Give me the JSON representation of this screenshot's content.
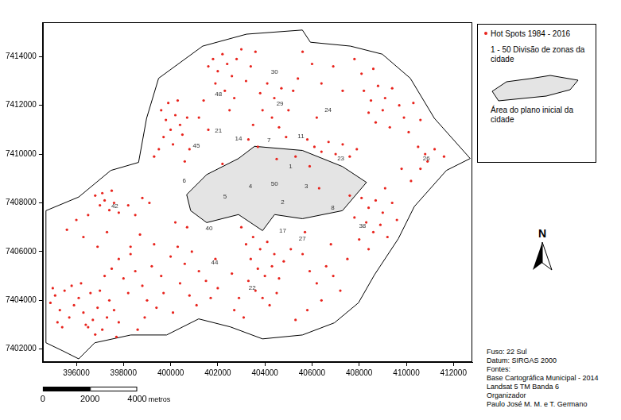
{
  "chart_data": {
    "type": "scatter",
    "series": [
      {
        "name": "Hot Spots 1984 - 2016",
        "color": "#e8231c",
        "marker": "circle",
        "x": [
          394900,
          395100,
          395300,
          395500,
          395700,
          395900,
          396100,
          396300,
          396500,
          396700,
          396900,
          397100,
          397300,
          395200,
          395400,
          395800,
          396200,
          396600,
          397000,
          397400,
          397600,
          397800,
          396400,
          396800,
          395000,
          397200,
          397500,
          397800,
          398000,
          398200,
          396800,
          397000,
          397200,
          397400,
          397600,
          397800,
          397100,
          397500,
          396500,
          396000,
          395600,
          396300,
          396900,
          397300,
          398200,
          398500,
          398800,
          399100,
          398300,
          398700,
          398500,
          398800,
          399200,
          399000,
          398900,
          398600,
          397700,
          399400,
          399700,
          398300,
          399300,
          399600,
          400000,
          400300,
          400600,
          400900,
          401200,
          401500,
          400400,
          400800,
          401100,
          400100,
          401700,
          402000,
          401900,
          400200,
          400700,
          399600,
          399800,
          400000,
          400200,
          400400,
          399700,
          400100,
          400500,
          399900,
          400300,
          400700,
          399500,
          400800,
          399300,
          400600,
          401600,
          401800,
          402000,
          402200,
          402400,
          402600,
          402800,
          403000,
          401900,
          402300,
          402700,
          403200,
          403400,
          403600,
          401400,
          401200,
          401600,
          402500,
          403800,
          404100,
          404400,
          404700,
          403900,
          404300,
          404600,
          403500,
          403300,
          403700,
          405000,
          405200,
          405600,
          406000,
          405400,
          406400,
          406900,
          407300,
          406200,
          407800,
          408200,
          408500,
          408800,
          409100,
          409400,
          409700,
          408400,
          408700,
          409000,
          409300,
          409900,
          408100,
          408600,
          410300,
          410600,
          410100,
          410500,
          410800,
          410900,
          411200,
          411600,
          410600,
          410200,
          409800,
          406100,
          406400,
          406700,
          407000,
          407300,
          407600,
          405800,
          407900,
          408100,
          408400,
          408700,
          409000,
          408300,
          408600,
          408900,
          409200,
          408000,
          408400,
          409400,
          409600,
          407800,
          407600,
          409100,
          403200,
          403500,
          403800,
          404100,
          404400,
          403400,
          403700,
          404000,
          404300,
          404600,
          403300,
          403600,
          403900,
          404200,
          404500,
          402900,
          402700,
          403100,
          404800,
          405100,
          402600,
          403000,
          405600,
          405900,
          406200,
          406600,
          406900,
          407200,
          406400,
          405800,
          405300,
          407500,
          406800,
          405700,
          404900,
          405300,
          405900,
          404500,
          402200,
          406300
        ],
        "values": [
          7403900,
          7404200,
          7403600,
          7404400,
          7403300,
          7403800,
          7404100,
          7403500,
          7402900,
          7403200,
          7403700,
          7402800,
          7403300,
          7403100,
          7402900,
          7404600,
          7404700,
          7404300,
          7404400,
          7404000,
          7403600,
          7403100,
          7403000,
          7402600,
          7404500,
          7405000,
          7405300,
          7405700,
          7404900,
          7404300,
          7408300,
          7407900,
          7408100,
          7407700,
          7408000,
          7407600,
          7408400,
          7408500,
          7407500,
          7407300,
          7406900,
          7406600,
          7406200,
          7406800,
          7407900,
          7407500,
          7408200,
          7408000,
          7406200,
          7406700,
          7405200,
          7404600,
          7405400,
          7404000,
          7403300,
          7402800,
          7402500,
          7403700,
          7404300,
          7405900,
          7406300,
          7405000,
          7405800,
          7406200,
          7405500,
          7406000,
          7405200,
          7404800,
          7404700,
          7404200,
          7403800,
          7403500,
          7404100,
          7404500,
          7405700,
          7407200,
          7407000,
          7411800,
          7411400,
          7411000,
          7411600,
          7411200,
          7410700,
          7410400,
          7410800,
          7412100,
          7412200,
          7411500,
          7410200,
          7410200,
          7409900,
          7409700,
          7413600,
          7413900,
          7413400,
          7414100,
          7413700,
          7413200,
          7413900,
          7414300,
          7412900,
          7412600,
          7412300,
          7413000,
          7413600,
          7414200,
          7412200,
          7411500,
          7411000,
          7411800,
          7412500,
          7412900,
          7412300,
          7412700,
          7411800,
          7411500,
          7411100,
          7411200,
          7410600,
          7410300,
          7411800,
          7412600,
          7414200,
          7413700,
          7413100,
          7412900,
          7413600,
          7412600,
          7411500,
          7413900,
          7412600,
          7412200,
          7412800,
          7412300,
          7412700,
          7412000,
          7411700,
          7411300,
          7411800,
          7411100,
          7411500,
          7413300,
          7413500,
          7412100,
          7411400,
          7410900,
          7410300,
          7410000,
          7409700,
          7410200,
          7409900,
          7409400,
          7408900,
          7409400,
          7410300,
          7410100,
          7410500,
          7410000,
          7410400,
          7409900,
          7410600,
          7410200,
          7408200,
          7407800,
          7408100,
          7407600,
          7407200,
          7406800,
          7407100,
          7406600,
          7406500,
          7406100,
          7408000,
          7407300,
          7407400,
          7408300,
          7408600,
          7406300,
          7406600,
          7406100,
          7406400,
          7405900,
          7405700,
          7405300,
          7405000,
          7405400,
          7404900,
          7404800,
          7404400,
          7404100,
          7403800,
          7404300,
          7404100,
          7403600,
          7403300,
          7405600,
          7406100,
          7405100,
          7407000,
          7405900,
          7405200,
          7404700,
          7405400,
          7405000,
          7404400,
          7404000,
          7403600,
          7403200,
          7405700,
          7406300,
          7406800,
          7410700,
          7409900,
          7409500,
          7409800,
          7409600,
          7408600
        ]
      }
    ],
    "xlim": [
      394580,
      412800
    ],
    "xticks": [
      396000,
      398000,
      400000,
      402000,
      404000,
      406000,
      408000,
      410000,
      412000
    ],
    "ylim": [
      7401470,
      7415410
    ],
    "yticks": [
      7402000,
      7404000,
      7406000,
      7408000,
      7410000,
      7412000,
      7414000
    ],
    "grid": false,
    "city_boundary": {
      "color": "#000000",
      "points": [
        [
          394710,
          7407680
        ],
        [
          396100,
          7408240
        ],
        [
          397460,
          7409330
        ],
        [
          398640,
          7409660
        ],
        [
          398980,
          7411470
        ],
        [
          399490,
          7413110
        ],
        [
          401360,
          7414430
        ],
        [
          403220,
          7414920
        ],
        [
          405590,
          7415090
        ],
        [
          405930,
          7414590
        ],
        [
          407630,
          7414430
        ],
        [
          408980,
          7414100
        ],
        [
          410170,
          7413110
        ],
        [
          411190,
          7411470
        ],
        [
          412710,
          7409820
        ],
        [
          411700,
          7409330
        ],
        [
          410340,
          7407850
        ],
        [
          409660,
          7406530
        ],
        [
          408650,
          7405050
        ],
        [
          407970,
          7403900
        ],
        [
          406950,
          7403080
        ],
        [
          405590,
          7402580
        ],
        [
          403900,
          7402420
        ],
        [
          402540,
          7402910
        ],
        [
          401190,
          7403240
        ],
        [
          399830,
          7402580
        ],
        [
          398310,
          7402580
        ],
        [
          396780,
          7402260
        ],
        [
          396100,
          7401600
        ],
        [
          395420,
          7401930
        ],
        [
          394710,
          7402260
        ]
      ]
    },
    "initial_plan": {
      "name": "Área do plano inicial da cidade",
      "color": "#e4e4e4",
      "points": [
        [
          400680,
          7408340
        ],
        [
          401530,
          7409160
        ],
        [
          402880,
          7409820
        ],
        [
          403560,
          7410320
        ],
        [
          405590,
          7410150
        ],
        [
          407290,
          7409490
        ],
        [
          408310,
          7408840
        ],
        [
          407290,
          7407680
        ],
        [
          405590,
          7407350
        ],
        [
          404410,
          7407520
        ],
        [
          403900,
          7406860
        ],
        [
          402880,
          7407520
        ],
        [
          401530,
          7407190
        ],
        [
          400850,
          7407680
        ]
      ]
    },
    "zones": {
      "name": "1 - 50 Divisão de zonas da cidade",
      "labels": [
        {
          "label": 30,
          "x": 404410,
          "y": 7413380
        },
        {
          "label": 48,
          "x": 402030,
          "y": 7412450
        },
        {
          "label": 29,
          "x": 404640,
          "y": 7412060
        },
        {
          "label": 24,
          "x": 406680,
          "y": 7411800
        },
        {
          "label": 21,
          "x": 402030,
          "y": 7410970
        },
        {
          "label": 14,
          "x": 402880,
          "y": 7410640
        },
        {
          "label": 7,
          "x": 404170,
          "y": 7410550
        },
        {
          "label": 11,
          "x": 405530,
          "y": 7410740
        },
        {
          "label": 23,
          "x": 407220,
          "y": 7409820
        },
        {
          "label": 26,
          "x": 410850,
          "y": 7409820
        },
        {
          "label": 45,
          "x": 401090,
          "y": 7410320
        },
        {
          "label": 6,
          "x": 400580,
          "y": 7408900
        },
        {
          "label": 4,
          "x": 403390,
          "y": 7408670
        },
        {
          "label": 50,
          "x": 404410,
          "y": 7408770
        },
        {
          "label": 1,
          "x": 405090,
          "y": 7409490
        },
        {
          "label": 3,
          "x": 405760,
          "y": 7408670
        },
        {
          "label": 5,
          "x": 402310,
          "y": 7408240
        },
        {
          "label": 2,
          "x": 404750,
          "y": 7408010
        },
        {
          "label": 42,
          "x": 397630,
          "y": 7407850
        },
        {
          "label": 40,
          "x": 401630,
          "y": 7406960
        },
        {
          "label": 17,
          "x": 404750,
          "y": 7406860
        },
        {
          "label": 27,
          "x": 405590,
          "y": 7406530
        },
        {
          "label": 8,
          "x": 406880,
          "y": 7407780
        },
        {
          "label": 38,
          "x": 408140,
          "y": 7407030
        },
        {
          "label": 44,
          "x": 401870,
          "y": 7405550
        },
        {
          "label": 22,
          "x": 403460,
          "y": 7404490
        }
      ]
    },
    "north_arrow": "N",
    "scale_bar": {
      "ticks": [
        0,
        2000,
        4000
      ],
      "unit": "metros"
    },
    "notes": [
      "Fuso: 22 Sul",
      "Datum: SIRGAS 2000",
      "Fontes:",
      "Base Cartográfica Municipal - 2014",
      "Landsat 5 TM Banda 6",
      "Organizador",
      "Paulo José M. M. e T. Germano"
    ]
  }
}
